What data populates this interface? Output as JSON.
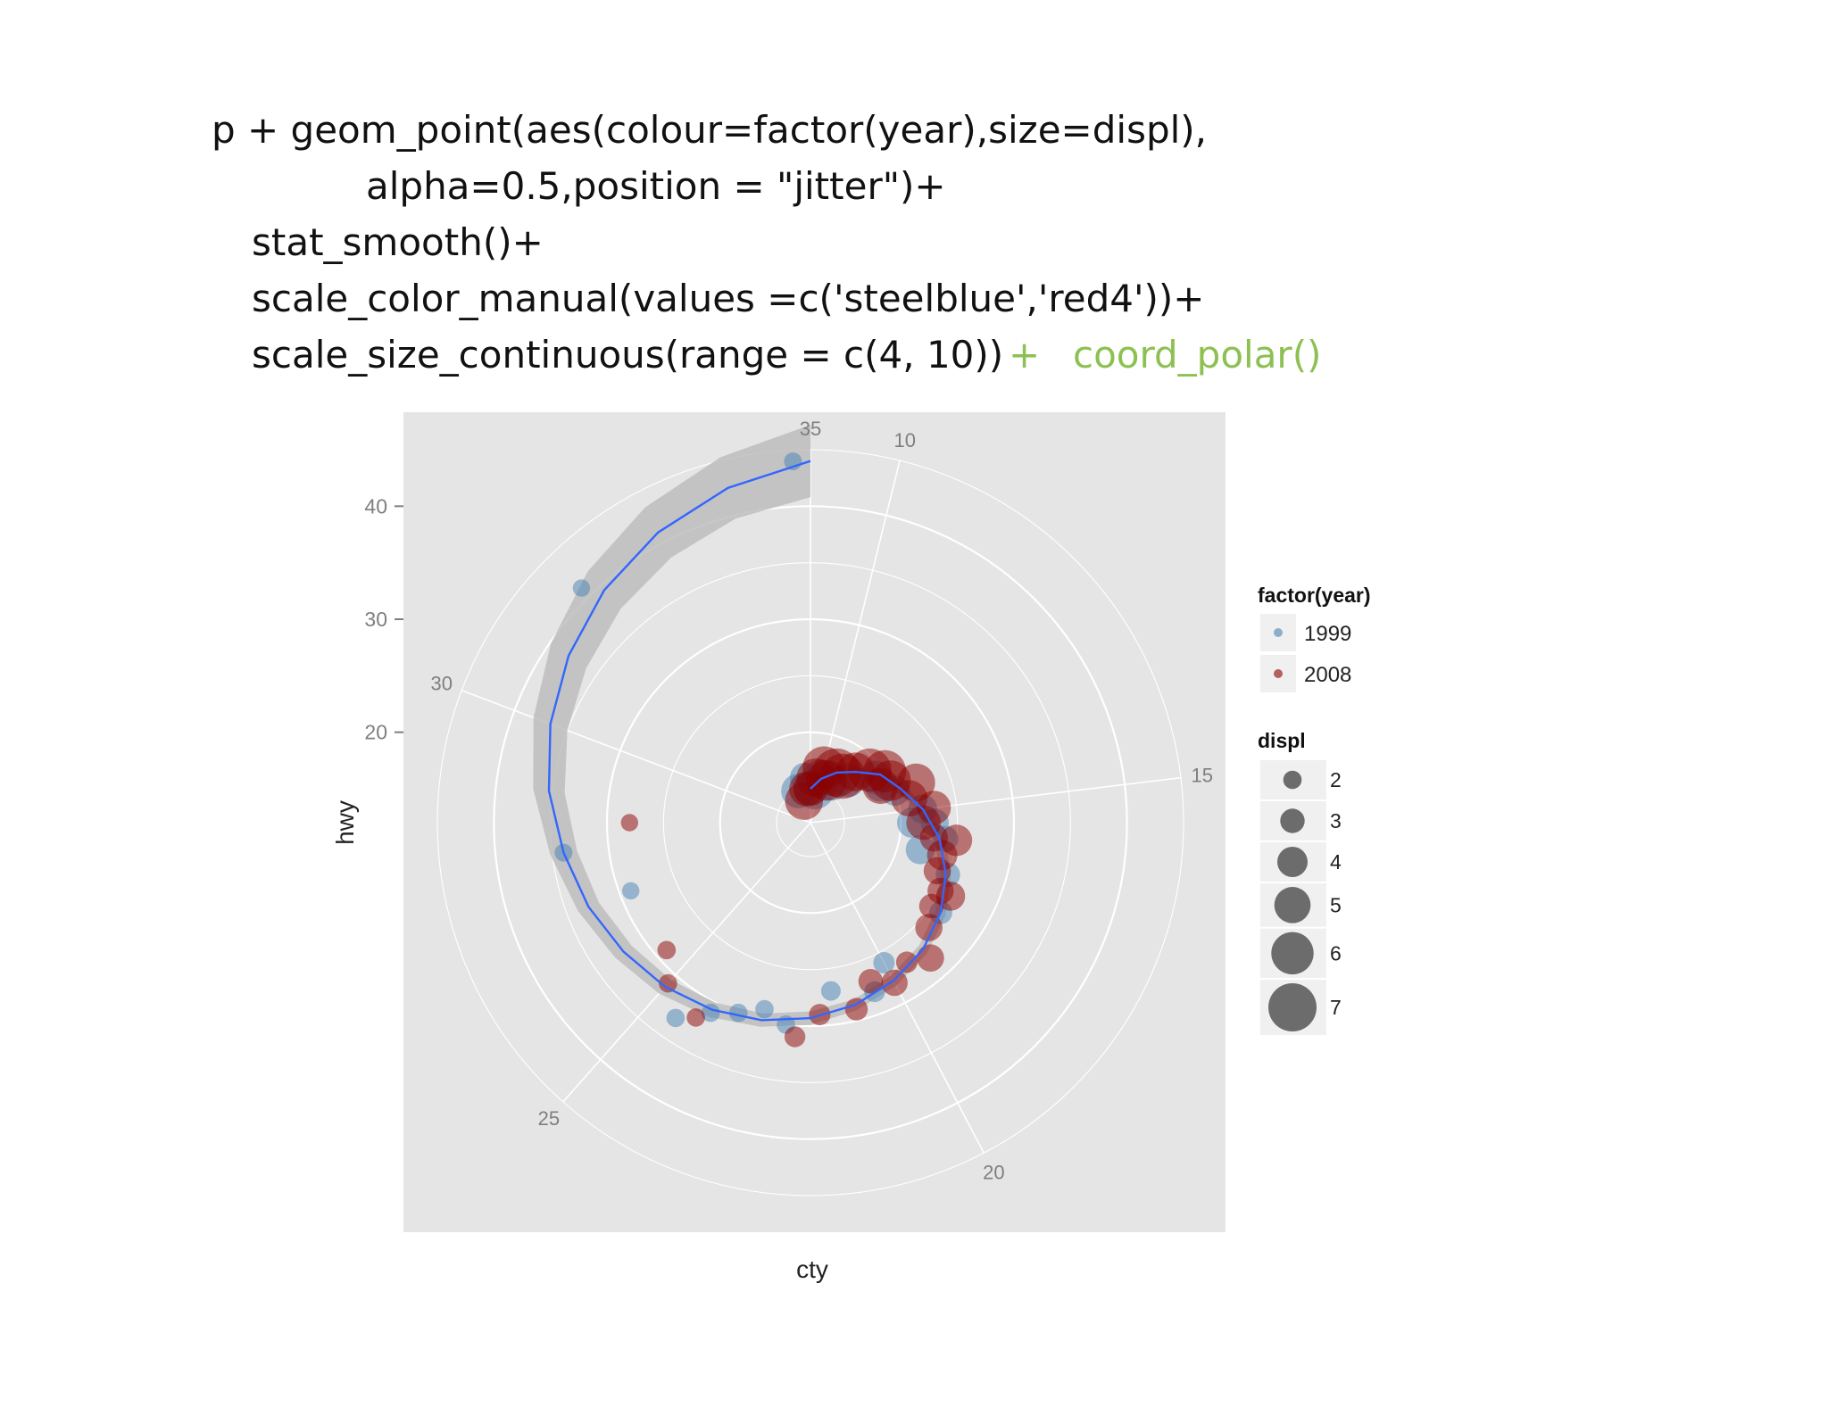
{
  "code": {
    "lines": [
      "p + geom_point(aes(colour=factor(year),size=displ),",
      "alpha=0.5,position = \"jitter\")+",
      "stat_smooth()+",
      "scale_color_manual(values =c('steelblue','red4'))+",
      "scale_size_continuous(range = c(4, 10))"
    ],
    "plus": "+",
    "highlight": "coord_polar()",
    "highlight_color": "#8cc152"
  },
  "colors": {
    "panel_bg": "#e5e5e5",
    "grid": "#ffffff",
    "series_1999": "#4682b4",
    "series_2008": "#8b0000",
    "smooth_line": "#3366ff",
    "ribbon": "#bdbdbd",
    "size_key": "#555555",
    "legend_key_bg": "#f0f0f0"
  },
  "chart_data": {
    "type": "scatter",
    "coord": "polar",
    "xlabel": "cty",
    "ylabel": "hwy",
    "theta_var": "cty",
    "r_var": "hwy",
    "theta_ticks": [
      "10",
      "15",
      "20",
      "25",
      "30",
      "35"
    ],
    "theta_range": [
      9,
      35
    ],
    "r_ticks": [
      "20",
      "30",
      "40"
    ],
    "r_range": [
      12,
      45
    ],
    "grid": true,
    "legend_position": "right",
    "legend": {
      "colour_title": "factor(year)",
      "colour_keys": [
        {
          "label": "1999",
          "color": "#4682b4"
        },
        {
          "label": "2008",
          "color": "#8b0000"
        }
      ],
      "size_title": "displ",
      "size_keys": [
        "2",
        "3",
        "4",
        "5",
        "6",
        "7"
      ]
    },
    "series": [
      {
        "name": "1999",
        "points": [
          {
            "cty": 34.8,
            "hwy": 44,
            "displ": 1.9
          },
          {
            "cty": 31.8,
            "hwy": 41,
            "displ": 1.8
          },
          {
            "cty": 28.0,
            "hwy": 34,
            "displ": 1.9
          },
          {
            "cty": 27.0,
            "hwy": 29,
            "displ": 1.8
          },
          {
            "cty": 24.5,
            "hwy": 33,
            "displ": 2.0
          },
          {
            "cty": 24.0,
            "hwy": 31,
            "displ": 2.0
          },
          {
            "cty": 23.5,
            "hwy": 30,
            "displ": 2.0
          },
          {
            "cty": 22.5,
            "hwy": 30,
            "displ": 2.0
          },
          {
            "cty": 23.0,
            "hwy": 29,
            "displ": 2.0
          },
          {
            "cty": 21.5,
            "hwy": 27,
            "displ": 2.2
          },
          {
            "cty": 20.5,
            "hwy": 28,
            "displ": 2.4
          },
          {
            "cty": 20.0,
            "hwy": 26,
            "displ": 2.5
          },
          {
            "cty": 18.0,
            "hwy": 26,
            "displ": 2.8
          },
          {
            "cty": 17.0,
            "hwy": 25,
            "displ": 3.0
          },
          {
            "cty": 16.0,
            "hwy": 24,
            "displ": 3.3
          },
          {
            "cty": 15.5,
            "hwy": 23,
            "displ": 3.6
          },
          {
            "cty": 15.0,
            "hwy": 22,
            "displ": 3.8
          },
          {
            "cty": 14.0,
            "hwy": 20,
            "displ": 4.0
          },
          {
            "cty": 13.5,
            "hwy": 19,
            "displ": 4.2
          },
          {
            "cty": 12.0,
            "hwy": 17,
            "displ": 4.6
          },
          {
            "cty": 11.0,
            "hwy": 16,
            "displ": 5.0
          },
          {
            "cty": 10.0,
            "hwy": 16,
            "displ": 5.4
          },
          {
            "cty": 9.5,
            "hwy": 15,
            "displ": 5.7
          },
          {
            "cty": 34.5,
            "hwy": 16,
            "displ": 4.0
          },
          {
            "cty": 35.0,
            "hwy": 15,
            "displ": 4.5
          },
          {
            "cty": 33.5,
            "hwy": 15,
            "displ": 4.7
          },
          {
            "cty": 15.5,
            "hwy": 21,
            "displ": 4.0
          },
          {
            "cty": 16.5,
            "hwy": 22,
            "displ": 3.8
          },
          {
            "cty": 13.0,
            "hwy": 19,
            "displ": 4.6
          }
        ]
      },
      {
        "name": "2008",
        "points": [
          {
            "cty": 28.5,
            "hwy": 28,
            "displ": 1.8
          },
          {
            "cty": 25.5,
            "hwy": 29,
            "displ": 2.0
          },
          {
            "cty": 25.0,
            "hwy": 31,
            "displ": 2.0
          },
          {
            "cty": 24.2,
            "hwy": 32,
            "displ": 2.0
          },
          {
            "cty": 22.3,
            "hwy": 31,
            "displ": 2.4
          },
          {
            "cty": 21.8,
            "hwy": 29,
            "displ": 2.5
          },
          {
            "cty": 21.0,
            "hwy": 29,
            "displ": 2.7
          },
          {
            "cty": 20.5,
            "hwy": 27,
            "displ": 3.0
          },
          {
            "cty": 20.0,
            "hwy": 28,
            "displ": 3.3
          },
          {
            "cty": 19.5,
            "hwy": 27,
            "displ": 2.5
          },
          {
            "cty": 19.0,
            "hwy": 28,
            "displ": 3.5
          },
          {
            "cty": 18.5,
            "hwy": 26,
            "displ": 3.5
          },
          {
            "cty": 18.0,
            "hwy": 25,
            "displ": 3.0
          },
          {
            "cty": 17.5,
            "hwy": 26,
            "displ": 3.8
          },
          {
            "cty": 17.0,
            "hwy": 24,
            "displ": 3.5
          },
          {
            "cty": 16.5,
            "hwy": 24,
            "displ": 4.0
          },
          {
            "cty": 16.0,
            "hwy": 25,
            "displ": 4.2
          },
          {
            "cty": 15.5,
            "hwy": 22,
            "displ": 4.7
          },
          {
            "cty": 15.0,
            "hwy": 23,
            "displ": 4.6
          },
          {
            "cty": 14.5,
            "hwy": 21,
            "displ": 5.0
          },
          {
            "cty": 14.0,
            "hwy": 22,
            "displ": 5.3
          },
          {
            "cty": 13.5,
            "hwy": 20,
            "displ": 5.7
          },
          {
            "cty": 13.0,
            "hwy": 20,
            "displ": 6.0
          },
          {
            "cty": 12.5,
            "hwy": 19,
            "displ": 6.2
          },
          {
            "cty": 12.0,
            "hwy": 18,
            "displ": 5.4
          },
          {
            "cty": 11.5,
            "hwy": 17,
            "displ": 6.5
          },
          {
            "cty": 11.0,
            "hwy": 17,
            "displ": 7.0
          },
          {
            "cty": 10.5,
            "hwy": 16,
            "displ": 5.7
          },
          {
            "cty": 10.0,
            "hwy": 17,
            "displ": 6.1
          },
          {
            "cty": 9.5,
            "hwy": 16,
            "displ": 5.4
          },
          {
            "cty": 9.0,
            "hwy": 15,
            "displ": 4.7
          },
          {
            "cty": 34.5,
            "hwy": 15,
            "displ": 4.7
          },
          {
            "cty": 33.8,
            "hwy": 14,
            "displ": 5.3
          },
          {
            "cty": 16.0,
            "hwy": 23,
            "displ": 3.6
          },
          {
            "cty": 13.5,
            "hwy": 19,
            "displ": 5.0
          },
          {
            "cty": 17.5,
            "hwy": 25,
            "displ": 3.3
          }
        ]
      }
    ],
    "smooth": {
      "points": [
        {
          "cty": 9,
          "hwy": 15
        },
        {
          "cty": 10,
          "hwy": 16
        },
        {
          "cty": 11,
          "hwy": 17
        },
        {
          "cty": 12,
          "hwy": 18
        },
        {
          "cty": 13,
          "hwy": 19.5
        },
        {
          "cty": 14,
          "hwy": 20.5
        },
        {
          "cty": 15,
          "hwy": 22
        },
        {
          "cty": 16,
          "hwy": 23.5
        },
        {
          "cty": 17,
          "hwy": 24.8
        },
        {
          "cty": 18,
          "hwy": 26
        },
        {
          "cty": 19,
          "hwy": 27
        },
        {
          "cty": 20,
          "hwy": 27.8
        },
        {
          "cty": 21,
          "hwy": 28.6
        },
        {
          "cty": 22,
          "hwy": 29.3
        },
        {
          "cty": 23,
          "hwy": 30
        },
        {
          "cty": 24,
          "hwy": 30.7
        },
        {
          "cty": 25,
          "hwy": 31.4
        },
        {
          "cty": 26,
          "hwy": 32.1
        },
        {
          "cty": 27,
          "hwy": 33
        },
        {
          "cty": 28,
          "hwy": 34
        },
        {
          "cty": 29,
          "hwy": 35.3
        },
        {
          "cty": 30,
          "hwy": 36.6
        },
        {
          "cty": 31,
          "hwy": 38
        },
        {
          "cty": 32,
          "hwy": 39.5
        },
        {
          "cty": 33,
          "hwy": 41
        },
        {
          "cty": 34,
          "hwy": 42.5
        },
        {
          "cty": 35,
          "hwy": 44
        }
      ],
      "se_halfwidth": [
        1.0,
        0.8,
        0.6,
        0.5,
        0.5,
        0.5,
        0.5,
        0.5,
        0.5,
        0.5,
        0.5,
        0.5,
        0.5,
        0.6,
        0.6,
        0.7,
        0.8,
        0.9,
        1.0,
        1.2,
        1.4,
        1.6,
        1.9,
        2.2,
        2.5,
        2.8,
        3.2
      ]
    }
  }
}
